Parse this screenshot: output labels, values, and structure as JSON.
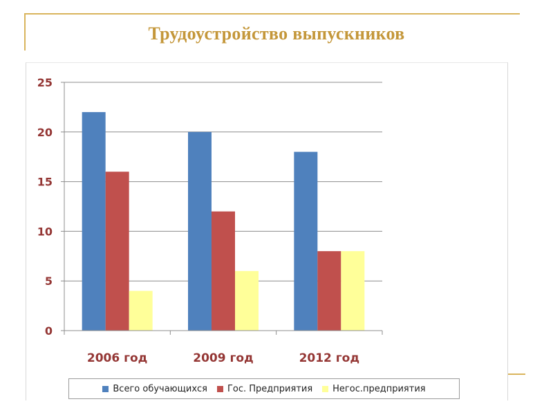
{
  "slide": {
    "title": "Трудоустройство выпускников",
    "accent_color": "#c4973a",
    "line_color": "#d9b45c"
  },
  "chart_data": {
    "type": "bar",
    "title": "",
    "xlabel": "",
    "ylabel": "",
    "categories": [
      "2006 год",
      "2009 год",
      "2012 год"
    ],
    "series": [
      {
        "name": "Всего обучающихся",
        "values": [
          22,
          20,
          18
        ],
        "color": "#4f81bd"
      },
      {
        "name": "Гос. Предприятия",
        "values": [
          16,
          12,
          8
        ],
        "color": "#c0504d"
      },
      {
        "name": "Негос.предприятия",
        "values": [
          4,
          6,
          8
        ],
        "color": "#ffff99"
      }
    ],
    "ylim": [
      0,
      25
    ],
    "yticks": [
      0,
      5,
      10,
      15,
      20,
      25
    ],
    "grid": true,
    "legend_position": "bottom",
    "tick_label_color": "#943634"
  }
}
